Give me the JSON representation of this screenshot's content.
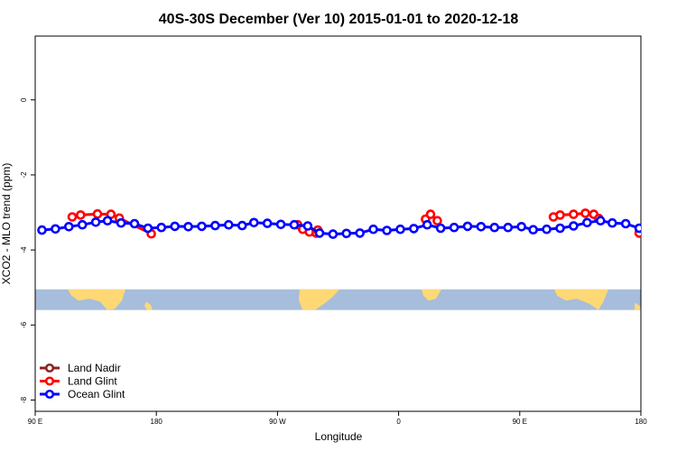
{
  "chart_data": {
    "type": "line",
    "title": "40S-30S December (Ver 10)   2015-01-01 to 2020-12-18",
    "xlabel": "Longitude",
    "ylabel": "XCO2 - MLO trend (ppm)",
    "xlim": [
      90,
      450
    ],
    "ylim": [
      -8.3,
      1.7
    ],
    "x_ticks": [
      {
        "value": 90,
        "label": "90 E"
      },
      {
        "value": 162,
        "label": "180"
      },
      {
        "value": 234,
        "label": "90 W"
      },
      {
        "value": 306,
        "label": "0"
      },
      {
        "value": 378,
        "label": "90 E"
      },
      {
        "value": 450,
        "label": "180"
      }
    ],
    "y_ticks": [
      {
        "value": 0,
        "label": "0"
      },
      {
        "value": -2,
        "label": "-2"
      },
      {
        "value": -4,
        "label": "-4"
      },
      {
        "value": -6,
        "label": "-6"
      },
      {
        "value": -8,
        "label": "-8"
      }
    ],
    "legend": {
      "position": "bottom-left",
      "entries": [
        {
          "name": "Land Nadir",
          "color": "#8b2323"
        },
        {
          "name": "Land Glint",
          "color": "#ff0000"
        },
        {
          "name": "Ocean Glint",
          "color": "#0000ff"
        }
      ]
    },
    "map_band": {
      "ymin": -5.6,
      "ymax": -5.05,
      "ocean_color": "#a6bddb",
      "land_color": "#fdd875"
    },
    "series": [
      {
        "name": "Land Nadir",
        "color": "#8b2323",
        "segments": []
      },
      {
        "name": "Land Glint",
        "color": "#ff0000",
        "segments": [
          [
            [
              112,
              -3.12
            ],
            [
              117,
              -3.07
            ],
            [
              127,
              -3.04
            ],
            [
              135,
              -3.05
            ],
            [
              140,
              -3.15
            ],
            [
              159,
              -3.57
            ]
          ],
          [
            [
              246,
              -3.33
            ],
            [
              249,
              -3.45
            ],
            [
              253,
              -3.52
            ],
            [
              257,
              -3.55
            ],
            [
              258,
              -3.47
            ]
          ],
          [
            [
              322,
              -3.18
            ],
            [
              325,
              -3.05
            ],
            [
              329,
              -3.22
            ]
          ],
          [
            [
              398,
              -3.12
            ],
            [
              402,
              -3.07
            ],
            [
              410,
              -3.05
            ],
            [
              417,
              -3.02
            ],
            [
              422,
              -3.05
            ],
            [
              425,
              -3.16
            ]
          ],
          [
            [
              449,
              -3.55
            ]
          ]
        ]
      },
      {
        "name": "Ocean Glint",
        "color": "#0000ff",
        "segments": [
          [
            [
              94,
              -3.47
            ],
            [
              102,
              -3.44
            ],
            [
              110,
              -3.38
            ],
            [
              118,
              -3.33
            ],
            [
              126,
              -3.26
            ],
            [
              133,
              -3.22
            ],
            [
              141,
              -3.28
            ],
            [
              149,
              -3.3
            ],
            [
              157,
              -3.42
            ],
            [
              165,
              -3.4
            ],
            [
              173,
              -3.37
            ],
            [
              181,
              -3.38
            ],
            [
              189,
              -3.37
            ],
            [
              197,
              -3.35
            ],
            [
              205,
              -3.33
            ],
            [
              213,
              -3.35
            ],
            [
              220,
              -3.27
            ],
            [
              228,
              -3.29
            ],
            [
              236,
              -3.32
            ],
            [
              244,
              -3.33
            ],
            [
              252,
              -3.36
            ],
            [
              259,
              -3.55
            ],
            [
              267,
              -3.58
            ],
            [
              275,
              -3.56
            ],
            [
              283,
              -3.55
            ],
            [
              291,
              -3.45
            ],
            [
              299,
              -3.48
            ],
            [
              307,
              -3.45
            ],
            [
              315,
              -3.43
            ],
            [
              323,
              -3.33
            ],
            [
              331,
              -3.42
            ],
            [
              339,
              -3.4
            ],
            [
              347,
              -3.37
            ],
            [
              355,
              -3.38
            ],
            [
              363,
              -3.4
            ],
            [
              371,
              -3.4
            ],
            [
              379,
              -3.38
            ],
            [
              386,
              -3.46
            ],
            [
              394,
              -3.45
            ],
            [
              402,
              -3.42
            ],
            [
              410,
              -3.36
            ],
            [
              418,
              -3.27
            ],
            [
              426,
              -3.22
            ],
            [
              433,
              -3.28
            ],
            [
              441,
              -3.3
            ],
            [
              449,
              -3.42
            ]
          ]
        ]
      }
    ]
  }
}
